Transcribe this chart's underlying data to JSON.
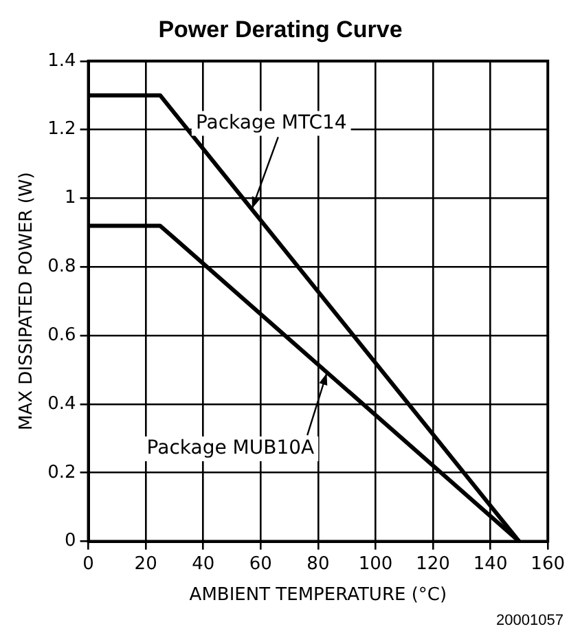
{
  "chart_data": {
    "type": "line",
    "title": "Power Derating Curve",
    "xlabel": "AMBIENT TEMPERATURE (°C)",
    "ylabel": "MAX DISSIPATED POWER (W)",
    "series": [
      {
        "color": "#000000",
        "x": [
          0,
          25,
          150
        ],
        "values": [
          1.3,
          1.3,
          0
        ]
      },
      {
        "color": "#000000",
        "x": [
          0,
          25,
          150
        ],
        "values": [
          0.92,
          0.92,
          0
        ]
      }
    ],
    "xlim": [
      0,
      160
    ],
    "xticks": [
      0,
      20,
      40,
      60,
      80,
      100,
      120,
      140,
      160
    ],
    "ylim": [
      0,
      1.4
    ],
    "yticks": [
      0,
      0.2,
      0.4,
      0.6,
      0.8,
      1,
      1.2,
      1.4
    ],
    "grid": true,
    "marker": "none",
    "line_style": "solid",
    "annotations": [
      {
        "text": "Package MTC14",
        "x": 57,
        "y": 0.97
      },
      {
        "text": "Package MUB10A",
        "x": 83,
        "y": 0.49
      },
      "20001057"
    ]
  }
}
